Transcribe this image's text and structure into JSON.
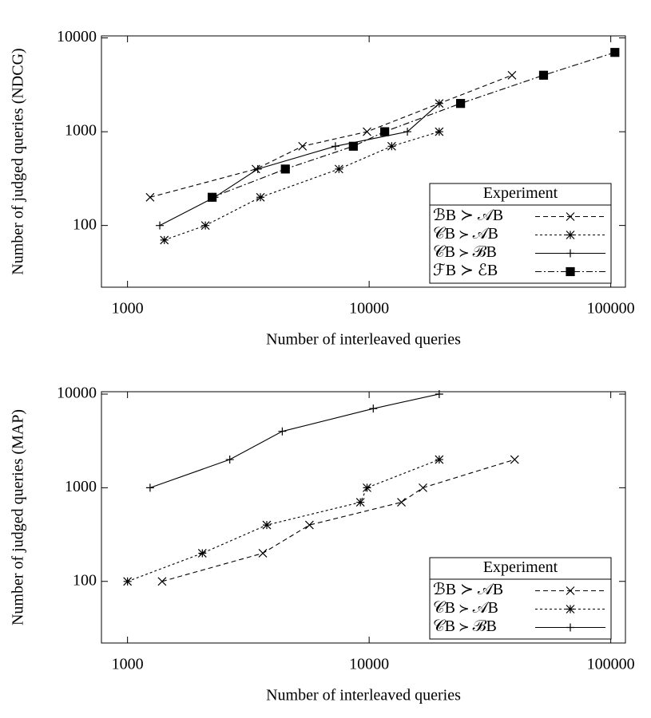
{
  "chart_data": [
    {
      "type": "line",
      "log_x": true,
      "log_y": true,
      "xlabel": "Number of interleaved queries",
      "ylabel": "Number of judged queries (NDCG)",
      "xlim": [
        780,
        115000
      ],
      "ylim": [
        22,
        10500
      ],
      "xticks": [
        1000,
        10000,
        100000
      ],
      "yticks": [
        100,
        1000,
        10000
      ],
      "legend_title": "Experiment",
      "legend": "lower right",
      "series": [
        {
          "name": "ℬB ≻ 𝒜B",
          "color": "#000000",
          "marker": "x",
          "dash": "6,4",
          "x": [
            1240,
            3400,
            5300,
            9800,
            19500,
            39000
          ],
          "values": [
            200,
            400,
            700,
            1000,
            2000,
            4000
          ]
        },
        {
          "name": "𝒞B ≻ 𝒜B",
          "color": "#000000",
          "marker": "star",
          "dash": "3,3",
          "x": [
            1420,
            2100,
            3550,
            7500,
            12400,
            19500
          ],
          "values": [
            70,
            100,
            200,
            400,
            700,
            1000
          ]
        },
        {
          "name": "𝒞B ≻ ℬB",
          "color": "#000000",
          "marker": "plus",
          "dash": "none",
          "x": [
            1360,
            2290,
            3460,
            7250,
            14400,
            19500
          ],
          "values": [
            100,
            200,
            400,
            700,
            1000,
            2000
          ]
        },
        {
          "name": "ℱB ≻ ℰB",
          "color": "#000000",
          "marker": "square",
          "dash": "8,3,2,3",
          "x": [
            2240,
            4500,
            8600,
            11600,
            23900,
            52700,
            104000
          ],
          "values": [
            200,
            400,
            700,
            1000,
            2000,
            4000,
            7000
          ]
        }
      ]
    },
    {
      "type": "line",
      "log_x": true,
      "log_y": true,
      "xlabel": "Number of interleaved queries",
      "ylabel": "Number of judged queries (MAP)",
      "xlim": [
        780,
        115000
      ],
      "ylim": [
        22,
        10600
      ],
      "xticks": [
        1000,
        10000,
        100000
      ],
      "yticks": [
        100,
        1000,
        10000
      ],
      "legend_title": "Experiment",
      "legend": "lower right",
      "series": [
        {
          "name": "ℬB ≻ 𝒜B",
          "color": "#000000",
          "marker": "x",
          "dash": "6,4",
          "x": [
            1390,
            3630,
            5660,
            13600,
            16700,
            40000
          ],
          "values": [
            100,
            200,
            400,
            700,
            1000,
            2000
          ]
        },
        {
          "name": "𝒞B ≻ 𝒜B",
          "color": "#000000",
          "marker": "star",
          "dash": "3,3",
          "x": [
            1000,
            2040,
            3770,
            9200,
            9800,
            19500
          ],
          "values": [
            100,
            200,
            400,
            700,
            1000,
            2000
          ]
        },
        {
          "name": "𝒞B ≻ ℬB",
          "color": "#000000",
          "marker": "plus",
          "dash": "none",
          "x": [
            1240,
            2650,
            4370,
            10400,
            19500
          ],
          "values": [
            1000,
            2000,
            4000,
            7000,
            10000
          ]
        }
      ]
    }
  ]
}
